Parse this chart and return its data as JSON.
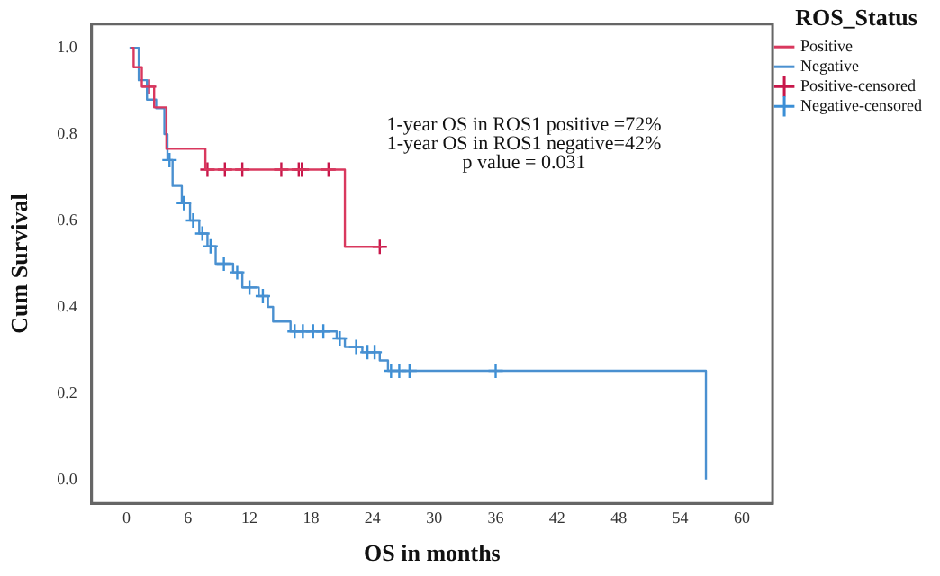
{
  "chart_data": {
    "type": "step",
    "xlabel": "OS in months",
    "ylabel": "Cum Survival",
    "legend_title": "ROS_Status",
    "xlim": [
      -3.4,
      63
    ],
    "xticks": [
      0,
      6,
      12,
      18,
      24,
      30,
      36,
      42,
      48,
      54,
      60
    ],
    "ylim": [
      -0.055,
      1.055
    ],
    "yticks": [
      {
        "value": 0,
        "label": "0.0"
      },
      {
        "value": 0.2,
        "label": "0.2"
      },
      {
        "value": 0.4,
        "label": "0.4"
      },
      {
        "value": 0.6,
        "label": "0.6"
      },
      {
        "value": 0.8,
        "label": "0.8"
      },
      {
        "value": 1,
        "label": "1.0"
      }
    ],
    "grid": false,
    "legend": "right",
    "series": [
      {
        "name": "Positive",
        "type": "step",
        "color": "#d9385e",
        "marker": "none",
        "x": [
          0.5,
          0.7,
          1.5,
          2.7,
          3.9,
          7.7,
          21.3,
          24.9
        ],
        "values": [
          1.0,
          0.955,
          0.91,
          0.862,
          0.766,
          0.718,
          0.539,
          0.539
        ]
      },
      {
        "name": "Negative",
        "type": "step",
        "color": "#4a90d0",
        "marker": "none",
        "x": [
          0.3,
          1.2,
          2.0,
          2.9,
          3.7,
          4.0,
          4.5,
          5.4,
          6.2,
          7.1,
          7.9,
          8.7,
          10.4,
          11.3,
          12.9,
          13.8,
          14.3,
          16.0,
          20.5,
          21.3,
          23.0,
          24.7,
          25.5,
          56.5,
          56.5
        ],
        "values": [
          1.0,
          0.925,
          0.88,
          0.86,
          0.8,
          0.74,
          0.68,
          0.64,
          0.6,
          0.57,
          0.54,
          0.5,
          0.48,
          0.445,
          0.425,
          0.4,
          0.366,
          0.343,
          0.327,
          0.307,
          0.295,
          0.276,
          0.252,
          0.252,
          0.0
        ]
      },
      {
        "name": "Positive-censored",
        "type": "scatter",
        "color": "#c8174a",
        "marker": "cross",
        "x": [
          2.2,
          7.9,
          9.6,
          11.3,
          15.1,
          16.8,
          17.1,
          19.7,
          24.7
        ],
        "values": [
          0.91,
          0.718,
          0.718,
          0.718,
          0.718,
          0.718,
          0.718,
          0.718,
          0.539
        ]
      },
      {
        "name": "Negative-censored",
        "type": "scatter",
        "color": "#3b8fd6",
        "marker": "cross",
        "x": [
          4.2,
          5.6,
          6.5,
          7.4,
          8.2,
          9.5,
          10.8,
          12.0,
          13.3,
          16.4,
          17.2,
          18.2,
          19.2,
          20.8,
          22.4,
          23.5,
          24.2,
          25.8,
          26.6,
          27.6,
          36.0
        ],
        "values": [
          0.74,
          0.64,
          0.6,
          0.57,
          0.54,
          0.5,
          0.48,
          0.445,
          0.425,
          0.343,
          0.343,
          0.343,
          0.343,
          0.327,
          0.307,
          0.295,
          0.295,
          0.252,
          0.252,
          0.252,
          0.252
        ]
      }
    ],
    "annotations": [
      "1-year OS in ROS1 positive =72%",
      "1-year OS in ROS1 negative=42%",
      "p value = 0.031"
    ]
  }
}
